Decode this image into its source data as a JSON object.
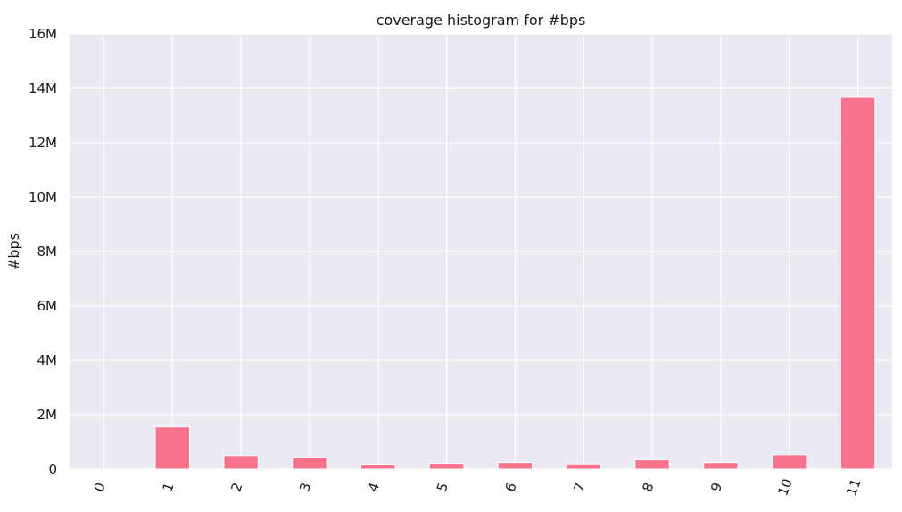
{
  "chart_data": {
    "type": "bar",
    "title": "coverage histogram for #bps",
    "xlabel": "",
    "ylabel": "#bps",
    "categories": [
      "0",
      "1",
      "2",
      "3",
      "4",
      "5",
      "6",
      "7",
      "8",
      "9",
      "10",
      "11"
    ],
    "values": [
      0,
      1550000,
      500000,
      440000,
      180000,
      210000,
      240000,
      190000,
      340000,
      240000,
      530000,
      13670000
    ],
    "ylim": [
      0,
      16000000
    ],
    "yticks": [
      0,
      2000000,
      4000000,
      6000000,
      8000000,
      10000000,
      12000000,
      14000000,
      16000000
    ],
    "ytick_labels": [
      "0",
      "2M",
      "4M",
      "6M",
      "8M",
      "10M",
      "12M",
      "14M",
      "16M"
    ],
    "grid": true,
    "colors": {
      "bar": "#f7728a",
      "background": "#eaeaf2",
      "grid": "#ffffff"
    }
  }
}
